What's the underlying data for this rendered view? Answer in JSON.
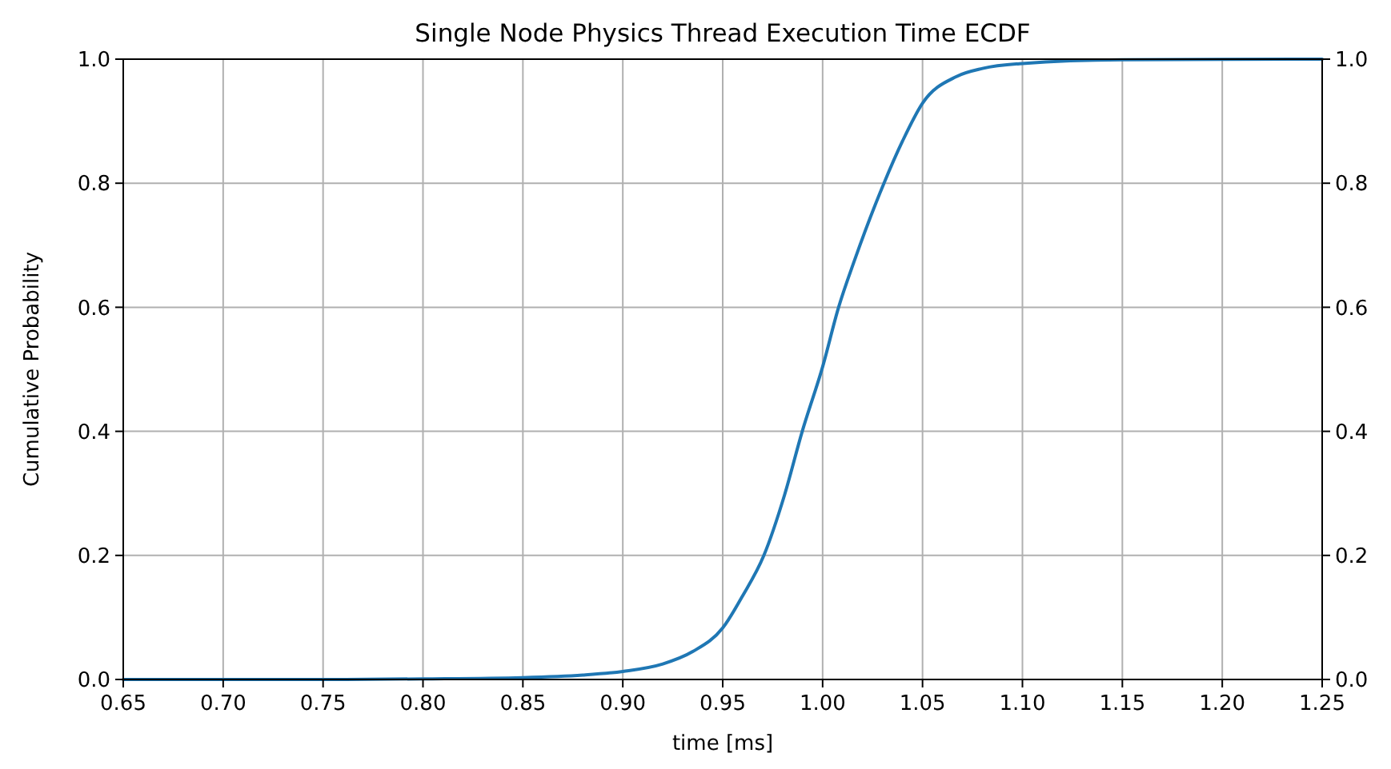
{
  "chart_data": {
    "type": "line",
    "title": "Single Node Physics Thread Execution Time ECDF",
    "xlabel": "time [ms]",
    "ylabel": "Cumulative Probability",
    "x": [
      0.65,
      0.75,
      0.8,
      0.85,
      0.88,
      0.9,
      0.92,
      0.935,
      0.95,
      0.96,
      0.9706,
      0.981,
      0.9898,
      1.0,
      1.008,
      1.016,
      1.0307,
      1.04,
      1.05,
      1.067,
      1.08,
      1.1,
      1.15,
      1.25
    ],
    "series": [
      {
        "color": "#1f77b4",
        "values": [
          0,
          0,
          0.001,
          0.003,
          0.007,
          0.013,
          0.025,
          0.045,
          0.083,
          0.135,
          0.2,
          0.298,
          0.4,
          0.504,
          0.6,
          0.676,
          0.8,
          0.868,
          0.929,
          0.972,
          0.985,
          0.993,
          0.999,
          1.0
        ]
      }
    ],
    "xlim": [
      0.65,
      1.25
    ],
    "xticks": [
      {
        "value": 0.65,
        "label": "0.65"
      },
      {
        "value": 0.7,
        "label": "0.70"
      },
      {
        "value": 0.75,
        "label": "0.75"
      },
      {
        "value": 0.8,
        "label": "0.80"
      },
      {
        "value": 0.85,
        "label": "0.85"
      },
      {
        "value": 0.9,
        "label": "0.90"
      },
      {
        "value": 0.95,
        "label": "0.95"
      },
      {
        "value": 1.0,
        "label": "1.00"
      },
      {
        "value": 1.05,
        "label": "1.05"
      },
      {
        "value": 1.1,
        "label": "1.10"
      },
      {
        "value": 1.15,
        "label": "1.15"
      },
      {
        "value": 1.2,
        "label": "1.20"
      },
      {
        "value": 1.25,
        "label": "1.25"
      }
    ],
    "ylim": [
      0,
      1
    ],
    "yticks": [
      {
        "value": 0,
        "label": "0.0"
      },
      {
        "value": 0.2,
        "label": "0.2"
      },
      {
        "value": 0.4,
        "label": "0.4"
      },
      {
        "value": 0.6,
        "label": "0.6"
      },
      {
        "value": 0.8,
        "label": "0.8"
      },
      {
        "value": 1,
        "label": "1.0"
      }
    ],
    "y2lim": [
      0,
      1
    ],
    "y2ticks": [
      {
        "value": 0,
        "label": "0.0"
      },
      {
        "value": 0.2,
        "label": "0.2"
      },
      {
        "value": 0.4,
        "label": "0.4"
      },
      {
        "value": 0.6,
        "label": "0.6"
      },
      {
        "value": 0.8,
        "label": "0.8"
      },
      {
        "value": 1,
        "label": "1.0"
      }
    ],
    "grid": true,
    "marker": "none",
    "line_style": "solid"
  }
}
